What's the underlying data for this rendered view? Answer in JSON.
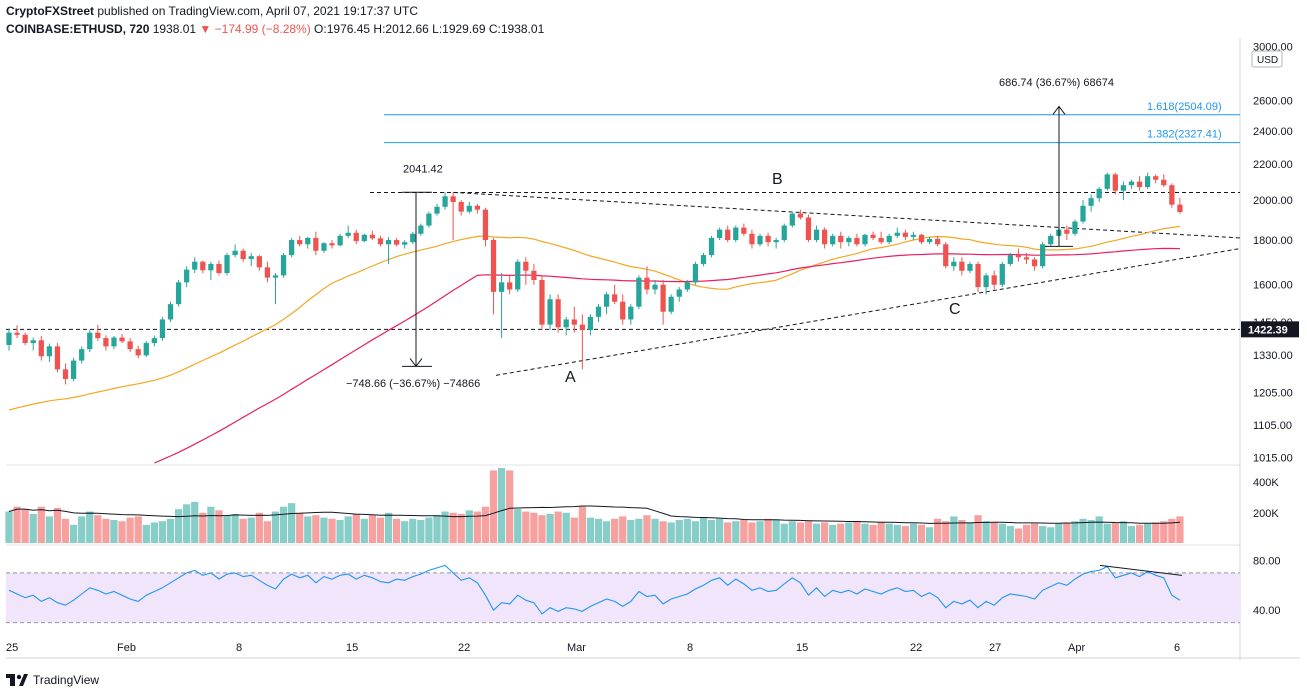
{
  "header": {
    "line1_brand": "CryptoFXStreet",
    "line1_rest": " published on TradingView.com, April 07, 2021 19:17:37 UTC",
    "symbol": "COINBASE:ETHUSD, 720",
    "price": " 1938.01",
    "change": " ▼ −174.99 (−8.28%)",
    "ohlc": " O:1976.45 H:2012.66 L:1929.69 C:1938.01"
  },
  "footer": {
    "brand": "TradingView"
  },
  "colors": {
    "up": "#26a69a",
    "down": "#ef5350",
    "ma_fast": "#f5a623",
    "ma_slow": "#e91e63",
    "fib": "#2196f3",
    "rsi_band": "#f1e5fb",
    "text_down": "#ef5350"
  },
  "chart_data": {
    "type": "candlestick",
    "price_axis": {
      "unit": "USD",
      "ticks": [
        "3000.00",
        "2600.00",
        "2400.00",
        "2200.00",
        "2000.00",
        "1800.00",
        "1600.00",
        "1450.00",
        "1330.00",
        "1205.00",
        "1105.00",
        "1015.00"
      ],
      "current_label": "1422.39"
    },
    "x_ticks": [
      "25",
      "Feb",
      "8",
      "15",
      "22",
      "Mar",
      "8",
      "15",
      "22",
      "27",
      "Apr",
      "6"
    ],
    "candles": [
      [
        1365,
        1425,
        1345,
        1410
      ],
      [
        1410,
        1438,
        1390,
        1402
      ],
      [
        1402,
        1410,
        1365,
        1372
      ],
      [
        1372,
        1392,
        1345,
        1382
      ],
      [
        1382,
        1398,
        1310,
        1325
      ],
      [
        1325,
        1370,
        1305,
        1360
      ],
      [
        1360,
        1372,
        1270,
        1280
      ],
      [
        1280,
        1300,
        1230,
        1248
      ],
      [
        1248,
        1320,
        1240,
        1310
      ],
      [
        1310,
        1360,
        1300,
        1350
      ],
      [
        1350,
        1420,
        1340,
        1410
      ],
      [
        1410,
        1440,
        1380,
        1390
      ],
      [
        1390,
        1400,
        1345,
        1360
      ],
      [
        1360,
        1398,
        1350,
        1392
      ],
      [
        1392,
        1405,
        1372,
        1378
      ],
      [
        1378,
        1390,
        1340,
        1350
      ],
      [
        1350,
        1362,
        1318,
        1328
      ],
      [
        1328,
        1380,
        1322,
        1372
      ],
      [
        1372,
        1400,
        1360,
        1390
      ],
      [
        1390,
        1470,
        1380,
        1460
      ],
      [
        1460,
        1530,
        1450,
        1520
      ],
      [
        1520,
        1620,
        1510,
        1610
      ],
      [
        1610,
        1680,
        1590,
        1665
      ],
      [
        1665,
        1720,
        1650,
        1700
      ],
      [
        1700,
        1705,
        1650,
        1662
      ],
      [
        1662,
        1700,
        1620,
        1690
      ],
      [
        1690,
        1705,
        1640,
        1650
      ],
      [
        1650,
        1740,
        1640,
        1730
      ],
      [
        1730,
        1780,
        1720,
        1750
      ],
      [
        1750,
        1760,
        1700,
        1712
      ],
      [
        1712,
        1740,
        1680,
        1725
      ],
      [
        1725,
        1730,
        1660,
        1675
      ],
      [
        1675,
        1700,
        1610,
        1630
      ],
      [
        1630,
        1650,
        1520,
        1640
      ],
      [
        1640,
        1740,
        1630,
        1730
      ],
      [
        1730,
        1810,
        1720,
        1800
      ],
      [
        1800,
        1820,
        1770,
        1780
      ],
      [
        1780,
        1815,
        1760,
        1810
      ],
      [
        1810,
        1840,
        1730,
        1750
      ],
      [
        1750,
        1790,
        1740,
        1785
      ],
      [
        1785,
        1800,
        1760,
        1775
      ],
      [
        1775,
        1830,
        1770,
        1820
      ],
      [
        1820,
        1870,
        1810,
        1835
      ],
      [
        1835,
        1850,
        1780,
        1795
      ],
      [
        1795,
        1830,
        1790,
        1825
      ],
      [
        1825,
        1845,
        1800,
        1808
      ],
      [
        1808,
        1820,
        1770,
        1780
      ],
      [
        1780,
        1815,
        1690,
        1800
      ],
      [
        1800,
        1810,
        1770,
        1778
      ],
      [
        1778,
        1800,
        1760,
        1790
      ],
      [
        1790,
        1840,
        1780,
        1830
      ],
      [
        1830,
        1880,
        1820,
        1870
      ],
      [
        1870,
        1940,
        1860,
        1930
      ],
      [
        1930,
        1980,
        1920,
        1965
      ],
      [
        1965,
        2042,
        1950,
        2020
      ],
      [
        2020,
        2040,
        1800,
        1990
      ],
      [
        1990,
        2000,
        1920,
        1940
      ],
      [
        1940,
        1990,
        1930,
        1970
      ],
      [
        1970,
        1980,
        1930,
        1950
      ],
      [
        1950,
        1960,
        1770,
        1800
      ],
      [
        1800,
        1810,
        1480,
        1570
      ],
      [
        1570,
        1650,
        1390,
        1610
      ],
      [
        1610,
        1640,
        1560,
        1580
      ],
      [
        1580,
        1710,
        1570,
        1700
      ],
      [
        1700,
        1720,
        1600,
        1660
      ],
      [
        1660,
        1690,
        1600,
        1620
      ],
      [
        1620,
        1640,
        1420,
        1440
      ],
      [
        1440,
        1560,
        1420,
        1540
      ],
      [
        1540,
        1560,
        1410,
        1430
      ],
      [
        1430,
        1470,
        1400,
        1460
      ],
      [
        1460,
        1510,
        1410,
        1440
      ],
      [
        1440,
        1480,
        1280,
        1420
      ],
      [
        1420,
        1480,
        1400,
        1470
      ],
      [
        1470,
        1520,
        1450,
        1510
      ],
      [
        1510,
        1570,
        1480,
        1560
      ],
      [
        1560,
        1600,
        1520,
        1530
      ],
      [
        1530,
        1560,
        1440,
        1460
      ],
      [
        1460,
        1520,
        1440,
        1510
      ],
      [
        1510,
        1640,
        1500,
        1630
      ],
      [
        1630,
        1680,
        1560,
        1580
      ],
      [
        1580,
        1620,
        1560,
        1600
      ],
      [
        1600,
        1620,
        1440,
        1490
      ],
      [
        1490,
        1560,
        1480,
        1550
      ],
      [
        1550,
        1590,
        1530,
        1580
      ],
      [
        1580,
        1620,
        1570,
        1610
      ],
      [
        1610,
        1700,
        1600,
        1690
      ],
      [
        1690,
        1740,
        1680,
        1730
      ],
      [
        1730,
        1820,
        1720,
        1810
      ],
      [
        1810,
        1860,
        1800,
        1850
      ],
      [
        1850,
        1870,
        1790,
        1800
      ],
      [
        1800,
        1870,
        1790,
        1860
      ],
      [
        1860,
        1880,
        1820,
        1830
      ],
      [
        1830,
        1850,
        1760,
        1780
      ],
      [
        1780,
        1830,
        1770,
        1820
      ],
      [
        1820,
        1835,
        1770,
        1790
      ],
      [
        1790,
        1810,
        1760,
        1800
      ],
      [
        1800,
        1880,
        1790,
        1870
      ],
      [
        1870,
        1940,
        1860,
        1930
      ],
      [
        1930,
        1950,
        1900,
        1910
      ],
      [
        1910,
        1925,
        1790,
        1800
      ],
      [
        1800,
        1870,
        1790,
        1850
      ],
      [
        1850,
        1860,
        1760,
        1780
      ],
      [
        1780,
        1830,
        1770,
        1820
      ],
      [
        1820,
        1840,
        1760,
        1790
      ],
      [
        1790,
        1820,
        1770,
        1810
      ],
      [
        1810,
        1830,
        1770,
        1780
      ],
      [
        1780,
        1830,
        1770,
        1825
      ],
      [
        1825,
        1840,
        1800,
        1810
      ],
      [
        1810,
        1840,
        1780,
        1790
      ],
      [
        1790,
        1830,
        1780,
        1820
      ],
      [
        1820,
        1860,
        1810,
        1835
      ],
      [
        1835,
        1850,
        1800,
        1815
      ],
      [
        1815,
        1840,
        1800,
        1825
      ],
      [
        1825,
        1830,
        1780,
        1790
      ],
      [
        1790,
        1815,
        1780,
        1805
      ],
      [
        1805,
        1820,
        1770,
        1780
      ],
      [
        1780,
        1790,
        1670,
        1680
      ],
      [
        1680,
        1720,
        1660,
        1700
      ],
      [
        1700,
        1720,
        1640,
        1660
      ],
      [
        1660,
        1700,
        1650,
        1690
      ],
      [
        1690,
        1700,
        1570,
        1590
      ],
      [
        1590,
        1650,
        1560,
        1640
      ],
      [
        1640,
        1660,
        1580,
        1600
      ],
      [
        1600,
        1700,
        1590,
        1690
      ],
      [
        1690,
        1740,
        1680,
        1730
      ],
      [
        1730,
        1760,
        1700,
        1720
      ],
      [
        1720,
        1740,
        1690,
        1710
      ],
      [
        1710,
        1720,
        1660,
        1680
      ],
      [
        1680,
        1790,
        1670,
        1780
      ],
      [
        1780,
        1830,
        1770,
        1820
      ],
      [
        1820,
        1860,
        1810,
        1850
      ],
      [
        1850,
        1870,
        1800,
        1830
      ],
      [
        1830,
        1900,
        1820,
        1890
      ],
      [
        1890,
        2000,
        1880,
        1970
      ],
      [
        1970,
        2030,
        1940,
        2010
      ],
      [
        2010,
        2070,
        1990,
        2060
      ],
      [
        2060,
        2150,
        2050,
        2140
      ],
      [
        2140,
        2150,
        2030,
        2050
      ],
      [
        2050,
        2100,
        2000,
        2080
      ],
      [
        2080,
        2110,
        2060,
        2100
      ],
      [
        2100,
        2130,
        2050,
        2070
      ],
      [
        2070,
        2150,
        2060,
        2130
      ],
      [
        2130,
        2140,
        2090,
        2110
      ],
      [
        2110,
        2140,
        2070,
        2080
      ],
      [
        2080,
        2090,
        1960,
        1976
      ],
      [
        1976,
        2012,
        1929,
        1938
      ]
    ],
    "horizontal_levels": [
      {
        "label": "1.618(2504.09)",
        "value": 2504.09
      },
      {
        "label": "1.382(2327.41)",
        "value": 2327.41
      }
    ],
    "annotations": {
      "high_label": "2041.42",
      "drop_label": "−748.66 (−36.67%) −74866",
      "rise_label": "686.74 (36.67%) 68674",
      "points": [
        "A",
        "B",
        "C"
      ]
    },
    "volume_axis": {
      "ticks": [
        "400K",
        "200K"
      ]
    },
    "volume": [
      260,
      300,
      280,
      240,
      300,
      220,
      290,
      200,
      150,
      220,
      260,
      230,
      200,
      190,
      180,
      210,
      220,
      150,
      170,
      180,
      200,
      280,
      320,
      340,
      250,
      300,
      270,
      230,
      240,
      200,
      210,
      250,
      180,
      260,
      300,
      330,
      250,
      220,
      230,
      210,
      200,
      190,
      220,
      240,
      200,
      230,
      210,
      250,
      200,
      180,
      200,
      190,
      210,
      230,
      260,
      250,
      240,
      270,
      260,
      300,
      600,
      620,
      600,
      280,
      260,
      250,
      230,
      240,
      260,
      250,
      210,
      300,
      210,
      200,
      180,
      200,
      220,
      190,
      200,
      230,
      200,
      180,
      170,
      190,
      200,
      180,
      210,
      190,
      200,
      170,
      180,
      190,
      170,
      180,
      200,
      190,
      160,
      180,
      170,
      180,
      160,
      170,
      150,
      160,
      170,
      180,
      160,
      150,
      170,
      160,
      150,
      140,
      160,
      150,
      130,
      200,
      180,
      220,
      190,
      170,
      230,
      180,
      170,
      160,
      140,
      120,
      150,
      160,
      140,
      130,
      160,
      170,
      180,
      200,
      190,
      220,
      160,
      170,
      180,
      140,
      150,
      160,
      170,
      180,
      200,
      220
    ],
    "rsi_axis": {
      "ticks": [
        "80.00",
        "40.00"
      ]
    },
    "rsi": [
      56,
      53,
      50,
      52,
      47,
      50,
      46,
      44,
      48,
      53,
      58,
      56,
      53,
      55,
      52,
      49,
      47,
      52,
      55,
      58,
      62,
      66,
      70,
      72,
      68,
      70,
      65,
      69,
      70,
      67,
      68,
      64,
      60,
      57,
      65,
      69,
      66,
      68,
      62,
      67,
      65,
      68,
      69,
      65,
      68,
      66,
      63,
      62,
      65,
      64,
      67,
      69,
      72,
      74,
      76,
      70,
      64,
      66,
      62,
      52,
      40,
      46,
      45,
      52,
      48,
      46,
      37,
      42,
      39,
      42,
      41,
      39,
      43,
      46,
      49,
      47,
      43,
      47,
      55,
      51,
      52,
      45,
      49,
      51,
      53,
      57,
      60,
      64,
      66,
      60,
      65,
      61,
      56,
      58,
      55,
      56,
      61,
      66,
      62,
      52,
      58,
      51,
      56,
      54,
      56,
      53,
      57,
      55,
      53,
      56,
      58,
      55,
      56,
      51,
      54,
      50,
      42,
      47,
      45,
      48,
      42,
      47,
      44,
      50,
      53,
      52,
      51,
      49,
      56,
      59,
      62,
      60,
      65,
      69,
      71,
      72,
      75,
      66,
      68,
      70,
      67,
      71,
      68,
      66,
      52,
      48
    ]
  }
}
